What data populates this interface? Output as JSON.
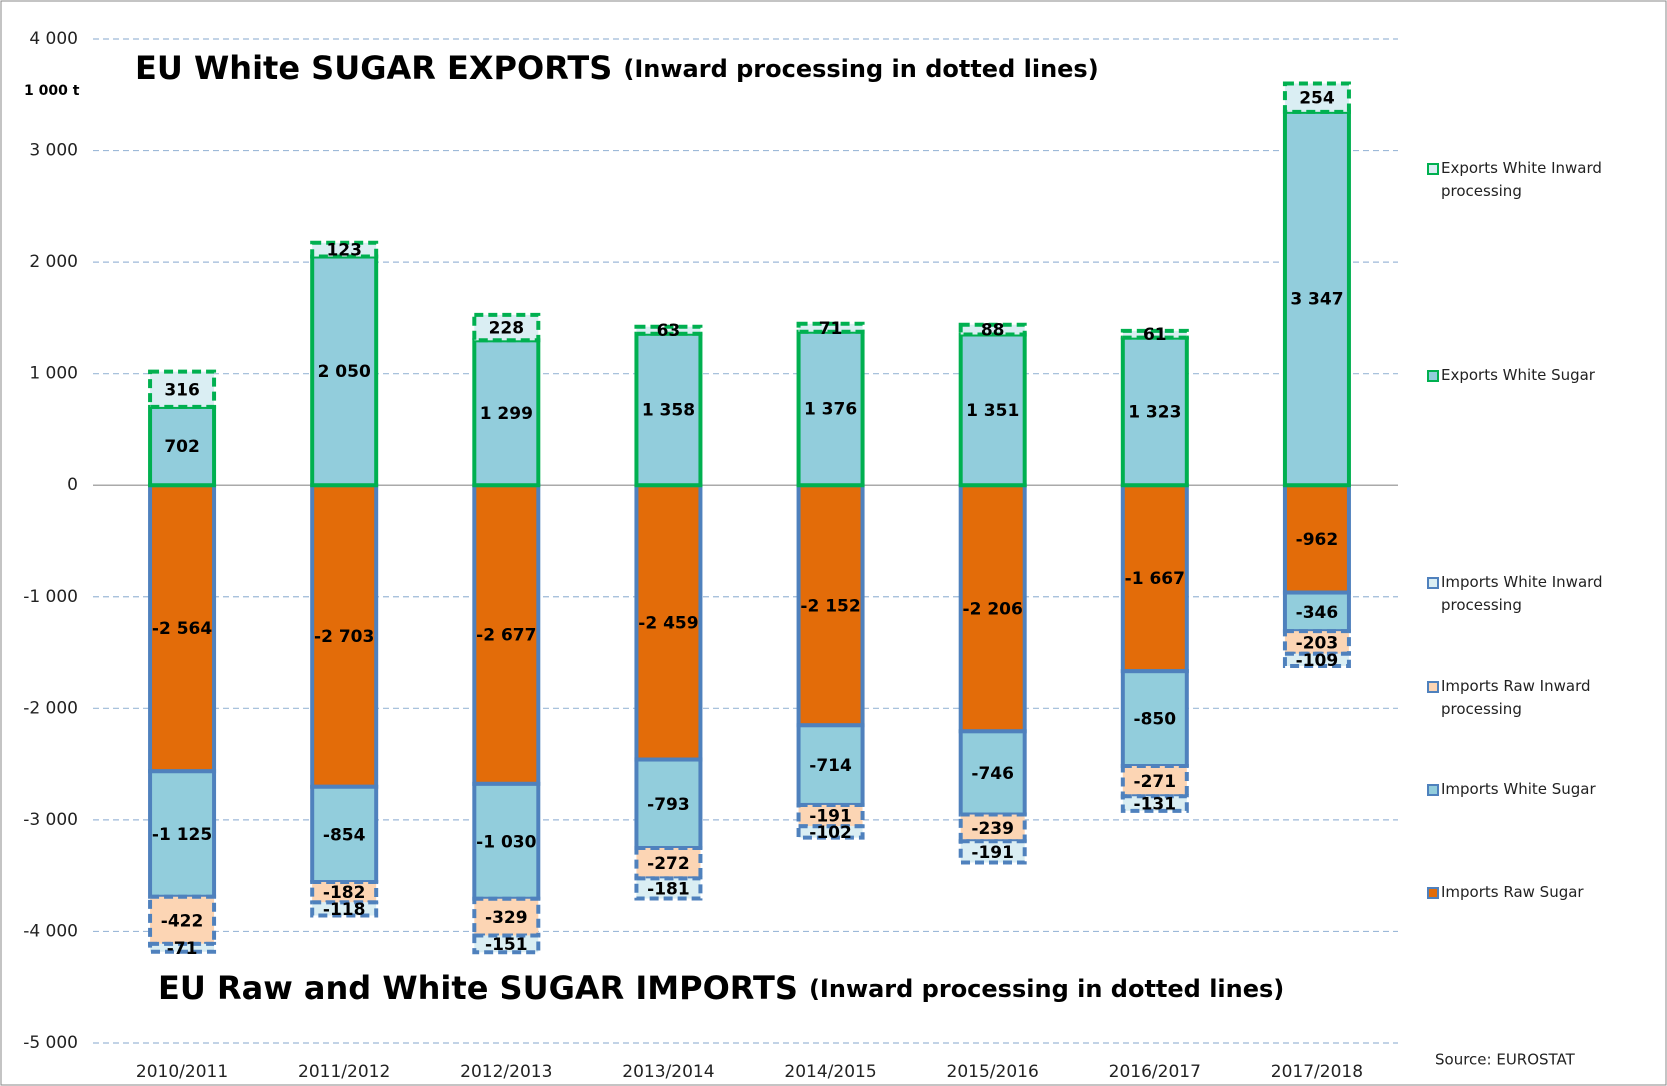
{
  "chart_data": {
    "type": "bar",
    "title": "EU White SUGAR EXPORTS",
    "title_note": "(Inward processing in dotted lines)",
    "subtitle": "EU Raw and White SUGAR IMPORTS",
    "subtitle_note": "(Inward processing in dotted lines)",
    "y_label": "1 000 t",
    "source": "Source: EUROSTAT",
    "categories": [
      "2010/2011",
      "2011/2012",
      "2012/2013",
      "2013/2014",
      "2014/2015",
      "2015/2016",
      "2016/2017",
      "2017/2018"
    ],
    "ylim": [
      -5000,
      4000
    ],
    "yticks": [
      {
        "value": 4000,
        "label": "4 000"
      },
      {
        "value": 3000,
        "label": "3 000"
      },
      {
        "value": 2000,
        "label": "2 000"
      },
      {
        "value": 1000,
        "label": "1 000"
      },
      0,
      {
        "value": -1000,
        "label": "-1 000"
      },
      {
        "value": -2000,
        "label": "-2 000"
      },
      {
        "value": -3000,
        "label": "-3 000"
      },
      {
        "value": -4000,
        "label": "-4 000"
      },
      {
        "value": -5000,
        "label": "-5 000"
      }
    ],
    "grid": true,
    "legend": "right",
    "series": [
      {
        "name": "Exports White Inward processing",
        "color": "#daeef3",
        "border": "#00b050",
        "dashed": true,
        "values": [
          316,
          123,
          228,
          63,
          71,
          88,
          61,
          254
        ],
        "value_labels": [
          "316",
          "123",
          "228",
          "63",
          "71",
          "88",
          "61",
          "254"
        ]
      },
      {
        "name": "Exports White Sugar",
        "color": "#92cddc",
        "border": "#00b050",
        "dashed": false,
        "values": [
          702,
          2050,
          1299,
          1358,
          1376,
          1351,
          1323,
          3347
        ],
        "value_labels": [
          "702",
          "2 050",
          "1 299",
          "1 358",
          "1 376",
          "1 351",
          "1 323",
          "3 347"
        ]
      },
      {
        "name": "Imports White Inward processing",
        "color": "#daeef3",
        "border": "#4f81bd",
        "dashed": true,
        "values": [
          -71,
          -118,
          -151,
          -181,
          -102,
          -191,
          -131,
          -109
        ],
        "value_labels": [
          "-71",
          "-118",
          "-151",
          "-181",
          "-102",
          "-191",
          "-131",
          "-109"
        ]
      },
      {
        "name": "Imports Raw Inward processing",
        "color": "#fcd5b4",
        "border": "#4f81bd",
        "dashed": true,
        "values": [
          -422,
          -182,
          -329,
          -272,
          -191,
          -239,
          -271,
          -203
        ],
        "value_labels": [
          "-422",
          "-182",
          "-329",
          "-272",
          "-191",
          "-239",
          "-271",
          "-203"
        ]
      },
      {
        "name": "Imports White Sugar",
        "color": "#92cddc",
        "border": "#4f81bd",
        "dashed": false,
        "values": [
          -1125,
          -854,
          -1030,
          -793,
          -714,
          -746,
          -850,
          -346
        ],
        "value_labels": [
          "-1 125",
          "-854",
          "-1 030",
          "-793",
          "-714",
          "-746",
          "-850",
          "-346"
        ]
      },
      {
        "name": "Imports Raw Sugar",
        "color": "#e36c09",
        "border": "#4f81bd",
        "dashed": false,
        "values": [
          -2564,
          -2703,
          -2677,
          -2459,
          -2152,
          -2206,
          -1667,
          -962
        ],
        "value_labels": [
          "-2 564",
          "-2 703",
          "-2 677",
          "-2 459",
          "-2 152",
          "-2 206",
          "-1 667",
          "-962"
        ]
      }
    ]
  }
}
